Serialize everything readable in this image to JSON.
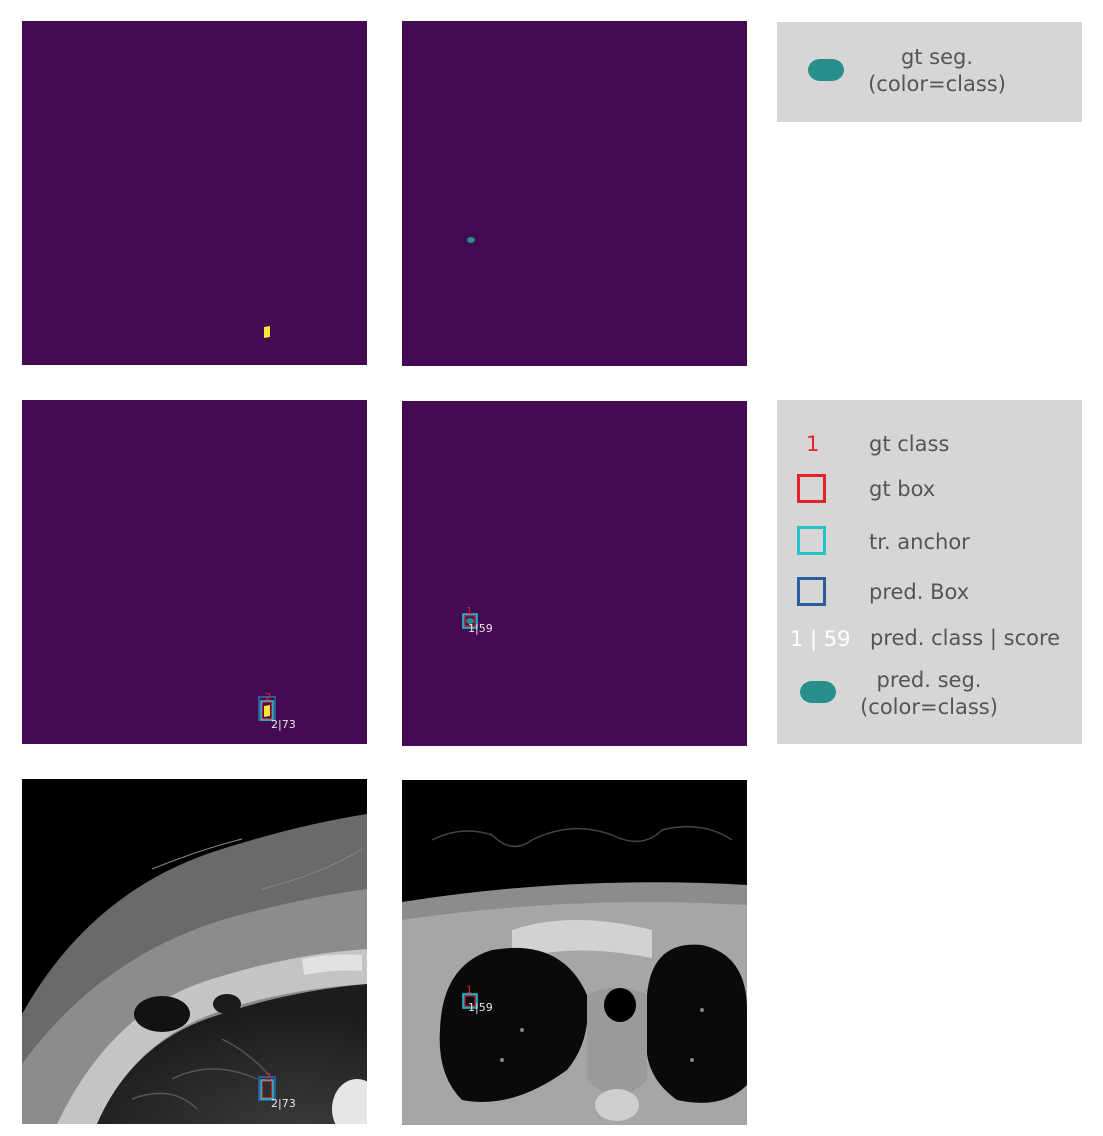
{
  "colors": {
    "background": "#440a52",
    "seg_teal": "#28908a",
    "seg_yellow": "#f9e43a",
    "gt_red": "#e0242a",
    "anchor_cyan": "#26c2c8",
    "pred_blue": "#2a5d9c",
    "legend_bg": "#d6d6d6",
    "legend_text": "#555555"
  },
  "panels": {
    "ll_pred_label": "2|73",
    "ll_gt_label": "2",
    "lm_pred_label": "1|59",
    "lm_gt_label": "1",
    "bl_pred_label": "2|73",
    "bl_gt_label": "2",
    "bm_pred_label": "1|59",
    "bm_gt_label": "1"
  },
  "legend_top": {
    "icon": "blob-icon",
    "line1": "gt seg.",
    "line2": "(color=class)"
  },
  "legend_bottom": {
    "gt_class_sample": "1",
    "gt_class_label": "gt class",
    "gt_box_label": "gt box",
    "anchor_label": "tr. anchor",
    "pred_box_label": "pred. Box",
    "pred_class_sample": "1 | 59",
    "pred_class_label": "pred. class | score",
    "pred_seg_line1": "pred. seg.",
    "pred_seg_line2": "(color=class)"
  }
}
